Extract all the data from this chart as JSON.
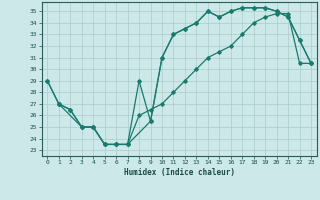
{
  "xlabel": "Humidex (Indice chaleur)",
  "bg_color": "#cce8e8",
  "grid_color": "#aacccc",
  "line_color": "#1a7a6e",
  "xlim": [
    -0.5,
    23.5
  ],
  "ylim": [
    22.5,
    35.8
  ],
  "yticks": [
    23,
    24,
    25,
    26,
    27,
    28,
    29,
    30,
    31,
    32,
    33,
    34,
    35
  ],
  "xticks": [
    0,
    1,
    2,
    3,
    4,
    5,
    6,
    7,
    8,
    9,
    10,
    11,
    12,
    13,
    14,
    15,
    16,
    17,
    18,
    19,
    20,
    21,
    22,
    23
  ],
  "l1x": [
    0,
    1,
    3,
    4,
    5,
    6,
    7,
    8,
    9,
    10,
    11,
    12,
    13,
    14,
    15,
    16,
    17,
    18,
    19,
    20,
    21,
    22,
    23
  ],
  "l1y": [
    29,
    27,
    25,
    25,
    23.5,
    23.5,
    23.5,
    29,
    25.5,
    31,
    33,
    33.5,
    34,
    35,
    34.5,
    35,
    35.3,
    35.3,
    35.3,
    35,
    34.5,
    32.5,
    30.5
  ],
  "l2x": [
    0,
    1,
    2,
    3,
    4,
    5,
    6,
    7,
    9,
    10,
    11,
    12,
    13,
    14,
    15,
    16,
    17,
    18,
    19,
    20,
    21,
    22,
    23
  ],
  "l2y": [
    29,
    27,
    26.5,
    25,
    25,
    23.5,
    23.5,
    23.5,
    25.5,
    31,
    33,
    33.5,
    34,
    35,
    34.5,
    35,
    35.3,
    35.3,
    35.3,
    35,
    34.5,
    32.5,
    30.5
  ],
  "l3x": [
    1,
    2,
    3,
    4,
    5,
    6,
    7,
    8,
    9,
    10,
    11,
    12,
    13,
    14,
    15,
    16,
    17,
    18,
    19,
    20,
    21,
    22,
    23
  ],
  "l3y": [
    27,
    26.5,
    25,
    25,
    23.5,
    23.5,
    23.5,
    26,
    26.5,
    27,
    28,
    29,
    30,
    31,
    31.5,
    32,
    33,
    34,
    34.5,
    34.8,
    34.8,
    30.5,
    30.5
  ]
}
